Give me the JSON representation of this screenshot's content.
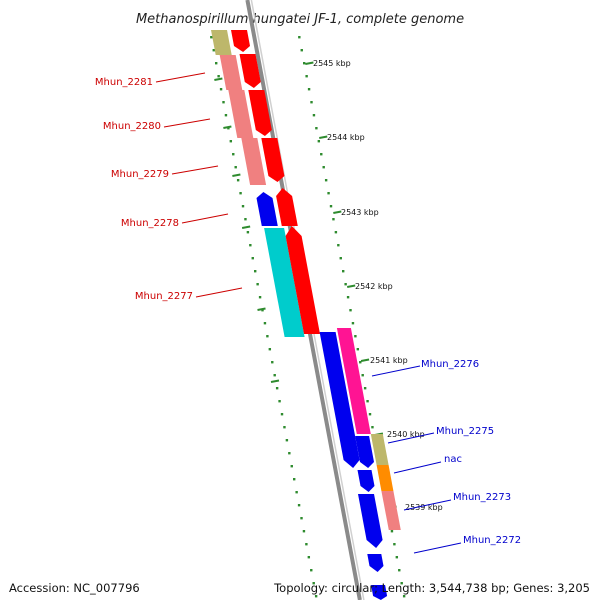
{
  "title": "Methanospirillum hungatei JF-1, complete genome",
  "accession": "Accession: NC_007796",
  "topology": "Topology: circular; Length: 3,544,738 bp; Genes: 3,205",
  "colors": {
    "backbone": "#8a8a8a",
    "ticks": "#2e8b2e",
    "red_label": "#cc0000",
    "blue_label": "#0000cc",
    "red": "#ff0000",
    "salmon": "#f08080",
    "olive": "#bdb76b",
    "blue": "#0000ee",
    "cyan": "#00cccc",
    "magenta": "#ff1493",
    "orange": "#ff8c00"
  },
  "chart_data": {
    "type": "genome-map",
    "title": "Methanospirillum hungatei JF-1, complete genome",
    "kbp_ticks": [
      "2545 kbp",
      "2544 kbp",
      "2543 kbp",
      "2542 kbp",
      "2541 kbp",
      "2540 kbp",
      "2539 kbp"
    ],
    "labeled_genes": [
      {
        "label": "Mhun_2281",
        "side": "left"
      },
      {
        "label": "Mhun_2280",
        "side": "left"
      },
      {
        "label": "Mhun_2279",
        "side": "left"
      },
      {
        "label": "Mhun_2278",
        "side": "left"
      },
      {
        "label": "Mhun_2277",
        "side": "left"
      },
      {
        "label": "Mhun_2276",
        "side": "right"
      },
      {
        "label": "Mhun_2275",
        "side": "right"
      },
      {
        "label": "nac",
        "side": "right"
      },
      {
        "label": "Mhun_2273",
        "side": "right"
      },
      {
        "label": "Mhun_2272",
        "side": "right"
      }
    ]
  }
}
